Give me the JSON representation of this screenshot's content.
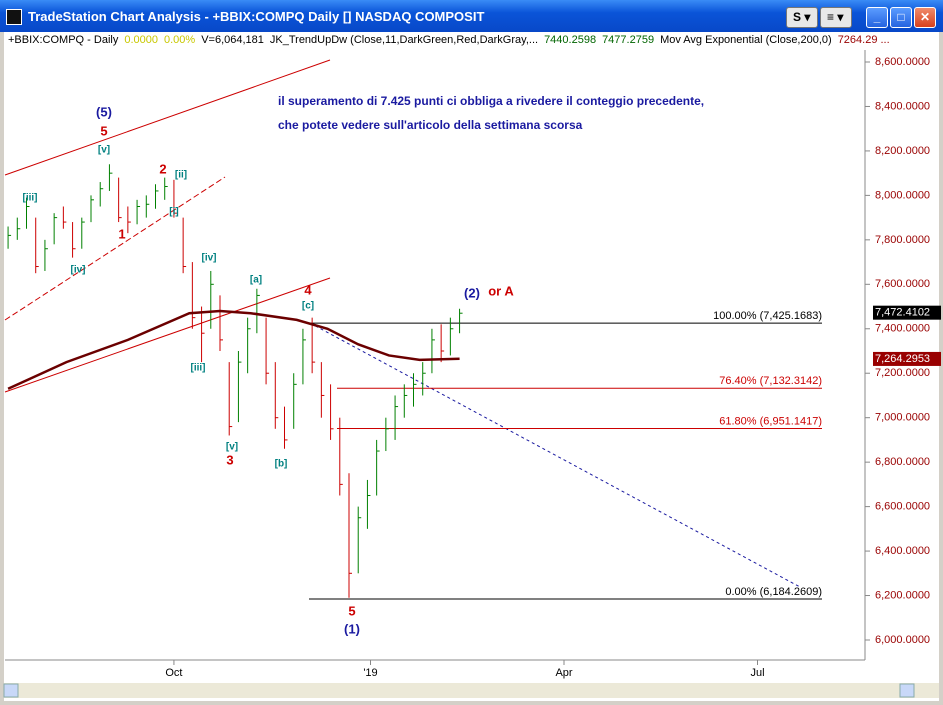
{
  "window": {
    "title": "TradeStation Chart Analysis - +BBIX:COMPQ Daily [] NASDAQ COMPOSIT",
    "buttons": [
      "S",
      "≡"
    ]
  },
  "info": [
    "+BBIX:COMPQ - Daily",
    "0.0000",
    "0.00%",
    "V=6,064,181",
    "JK_TrendUpDw (Close,11,DarkGreen,Red,DarkGray,...",
    "7440.2598",
    "7477.2759",
    "Mov Avg Exponential (Close,200,0)",
    "7264.29 ..."
  ],
  "chart_data": {
    "type": "ohlc",
    "up_color": "#008000",
    "down_color": "#cc0000",
    "ma_color": "#6b0000",
    "x": [
      1,
      4,
      7,
      10,
      13,
      16,
      19,
      22,
      25,
      28,
      31,
      34,
      37,
      40,
      43,
      46,
      49,
      52,
      55,
      58,
      61,
      64,
      67,
      70,
      73,
      76,
      79,
      82,
      85,
      88,
      91,
      94,
      97,
      100,
      103,
      106,
      109,
      112,
      115,
      118,
      121,
      124,
      127,
      130,
      133,
      136,
      139,
      142,
      145,
      148
    ],
    "high": [
      7860,
      7900,
      7990,
      7900,
      7800,
      7920,
      7950,
      7880,
      7900,
      8000,
      8060,
      8140,
      8080,
      7950,
      7980,
      8000,
      8050,
      8080,
      8070,
      7900,
      7700,
      7500,
      7660,
      7550,
      7250,
      7300,
      7450,
      7580,
      7450,
      7250,
      7050,
      7200,
      7400,
      7450,
      7250,
      7150,
      7000,
      6750,
      6600,
      6720,
      6900,
      7000,
      7100,
      7150,
      7200,
      7250,
      7400,
      7420,
      7450,
      7490
    ],
    "low": [
      7760,
      7800,
      7850,
      7650,
      7660,
      7780,
      7850,
      7720,
      7760,
      7880,
      7950,
      8020,
      7880,
      7830,
      7870,
      7900,
      7940,
      7980,
      7900,
      7650,
      7400,
      7250,
      7400,
      7300,
      6920,
      6980,
      7200,
      7380,
      7150,
      6950,
      6860,
      6950,
      7150,
      7200,
      7000,
      6900,
      6650,
      6190,
      6300,
      6500,
      6650,
      6850,
      6900,
      7000,
      7050,
      7100,
      7200,
      7250,
      7280,
      7380
    ],
    "close": [
      7820,
      7850,
      7950,
      7680,
      7760,
      7900,
      7880,
      7760,
      7880,
      7980,
      8030,
      8100,
      7900,
      7880,
      7950,
      7960,
      8020,
      8040,
      7920,
      7680,
      7450,
      7380,
      7600,
      7350,
      6960,
      7250,
      7400,
      7550,
      7200,
      7000,
      6900,
      7150,
      7350,
      7250,
      7100,
      6950,
      6700,
      6300,
      6550,
      6650,
      6850,
      6950,
      7050,
      7100,
      7150,
      7200,
      7350,
      7300,
      7400,
      7470
    ],
    "ma_x": [
      1,
      20,
      40,
      60,
      70,
      80,
      95,
      105,
      115,
      125,
      135,
      148
    ],
    "ma": [
      7130,
      7250,
      7350,
      7470,
      7480,
      7470,
      7440,
      7400,
      7330,
      7280,
      7260,
      7265
    ],
    "xlim": [
      0,
      280
    ],
    "xticks": [
      {
        "value": 55,
        "label": "Oct"
      },
      {
        "value": 119,
        "label": "'19"
      },
      {
        "value": 182,
        "label": "Apr"
      },
      {
        "value": 245,
        "label": "Jul"
      }
    ],
    "ylim": [
      5910,
      8654
    ],
    "yticks": [
      {
        "value": 6000,
        "label": "6,000.0000"
      },
      {
        "value": 6200,
        "label": "6,200.0000"
      },
      {
        "value": 6400,
        "label": "6,400.0000"
      },
      {
        "value": 6600,
        "label": "6,600.0000"
      },
      {
        "value": 6800,
        "label": "6,800.0000"
      },
      {
        "value": 7000,
        "label": "7,000.0000"
      },
      {
        "value": 7200,
        "label": "7,200.0000"
      },
      {
        "value": 7400,
        "label": "7,400.0000"
      },
      {
        "value": 7600,
        "label": "7,600.0000"
      },
      {
        "value": 7800,
        "label": "7,800.0000"
      },
      {
        "value": 8000,
        "label": "8,000.0000"
      },
      {
        "value": 8200,
        "label": "8,200.0000"
      },
      {
        "value": 8400,
        "label": "8,400.0000"
      },
      {
        "value": 8600,
        "label": "8,600.0000"
      }
    ],
    "fib": [
      {
        "value": 7425.1683,
        "label": "100.00% (7,425.1683)",
        "color": "#000000"
      },
      {
        "value": 7132.3142,
        "label": "76.40% (7,132.3142)",
        "color": "#cc0000"
      },
      {
        "value": 6951.1417,
        "label": "61.80% (6,951.1417)",
        "color": "#cc0000"
      },
      {
        "value": 6184.2609,
        "label": "0.00% (6,184.2609)",
        "color": "#000000"
      }
    ],
    "last_prices": [
      {
        "value": 7472.4102,
        "label": "7,472.4102",
        "color": "#000000"
      },
      {
        "value": 7264.2953,
        "label": "7,264.2953",
        "color": "#990000"
      }
    ],
    "comments": [
      "il superamento di 7.425 punti ci obbliga a rivedere il conteggio precedente,",
      "che potete vedere sull'articolo della settimana scorsa"
    ],
    "annotations": [
      {
        "text": "(5)",
        "color": "#1a1aa0"
      },
      {
        "text": "5",
        "color": "#cc0000"
      },
      {
        "text": "[v]",
        "color": "#008080"
      },
      {
        "text": "[iii]",
        "color": "#008080"
      },
      {
        "text": "[iv]",
        "color": "#008080"
      },
      {
        "text": "1",
        "color": "#cc0000"
      },
      {
        "text": "2",
        "color": "#cc0000"
      },
      {
        "text": "[ii]",
        "color": "#008080"
      },
      {
        "text": "[i]",
        "color": "#008080"
      },
      {
        "text": "[iv]",
        "color": "#008080"
      },
      {
        "text": "[a]",
        "color": "#008080"
      },
      {
        "text": "4",
        "color": "#cc0000"
      },
      {
        "text": "[c]",
        "color": "#008080"
      },
      {
        "text": "[iii]",
        "color": "#008080"
      },
      {
        "text": "[v]",
        "color": "#008080"
      },
      {
        "text": "3",
        "color": "#cc0000"
      },
      {
        "text": "[b]",
        "color": "#008080"
      },
      {
        "text": "5",
        "color": "#cc0000"
      },
      {
        "text": "(1)",
        "color": "#1a1aa0"
      },
      {
        "text": "(2)",
        "color": "#1a1aa0"
      },
      {
        "text": "or A",
        "color": "#cc0000"
      }
    ]
  }
}
